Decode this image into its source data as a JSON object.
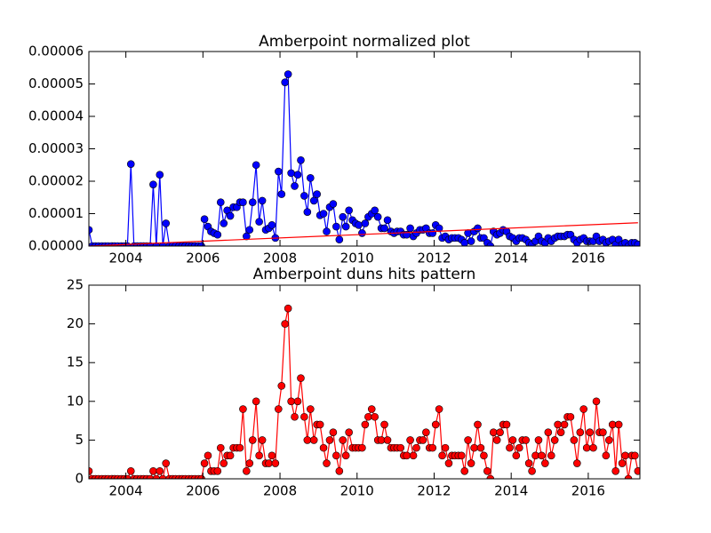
{
  "chart_data": [
    {
      "type": "line",
      "title": "Amberpoint normalized plot",
      "x": [
        2003.04,
        2003.13,
        2003.21,
        2003.29,
        2003.38,
        2003.46,
        2003.54,
        2003.63,
        2003.71,
        2003.79,
        2003.88,
        2003.96,
        2004.04,
        2004.13,
        2004.21,
        2004.29,
        2004.38,
        2004.46,
        2004.54,
        2004.63,
        2004.71,
        2004.79,
        2004.88,
        2004.96,
        2005.04,
        2005.13,
        2005.21,
        2005.29,
        2005.38,
        2005.46,
        2005.54,
        2005.63,
        2005.71,
        2005.79,
        2005.88,
        2005.96,
        2006.04,
        2006.13,
        2006.21,
        2006.29,
        2006.38,
        2006.46,
        2006.54,
        2006.63,
        2006.71,
        2006.79,
        2006.88,
        2006.96,
        2007.04,
        2007.13,
        2007.21,
        2007.29,
        2007.38,
        2007.46,
        2007.54,
        2007.63,
        2007.71,
        2007.79,
        2007.88,
        2007.96,
        2008.04,
        2008.13,
        2008.21,
        2008.29,
        2008.38,
        2008.46,
        2008.54,
        2008.63,
        2008.71,
        2008.79,
        2008.88,
        2008.96,
        2009.04,
        2009.13,
        2009.21,
        2009.29,
        2009.38,
        2009.46,
        2009.54,
        2009.63,
        2009.71,
        2009.79,
        2009.88,
        2009.96,
        2010.04,
        2010.13,
        2010.21,
        2010.29,
        2010.38,
        2010.46,
        2010.54,
        2010.63,
        2010.71,
        2010.79,
        2010.88,
        2010.96,
        2011.04,
        2011.13,
        2011.21,
        2011.29,
        2011.38,
        2011.46,
        2011.54,
        2011.63,
        2011.71,
        2011.79,
        2011.88,
        2011.96,
        2012.04,
        2012.13,
        2012.21,
        2012.29,
        2012.38,
        2012.46,
        2012.54,
        2012.63,
        2012.71,
        2012.79,
        2012.88,
        2012.96,
        2013.04,
        2013.13,
        2013.21,
        2013.29,
        2013.38,
        2013.46,
        2013.54,
        2013.63,
        2013.71,
        2013.79,
        2013.88,
        2013.96,
        2014.04,
        2014.13,
        2014.21,
        2014.29,
        2014.38,
        2014.46,
        2014.54,
        2014.63,
        2014.71,
        2014.79,
        2014.88,
        2014.96,
        2015.04,
        2015.13,
        2015.21,
        2015.29,
        2015.38,
        2015.46,
        2015.54,
        2015.63,
        2015.71,
        2015.79,
        2015.88,
        2015.96,
        2016.04,
        2016.13,
        2016.21,
        2016.29,
        2016.38,
        2016.46,
        2016.54,
        2016.63,
        2016.71,
        2016.79,
        2016.88,
        2016.96,
        2017.04,
        2017.13,
        2017.21,
        2017.29
      ],
      "series": [
        {
          "color": "#0000ff",
          "values": [
            5e-06,
            0,
            0,
            0,
            0,
            0,
            0,
            0,
            0,
            0,
            0,
            0,
            0,
            2.53e-05,
            0,
            0,
            0,
            0,
            0,
            0,
            1.9e-05,
            0,
            2.2e-05,
            0,
            7e-06,
            0,
            0,
            0,
            0,
            0,
            0,
            0,
            0,
            0,
            0,
            0,
            8.3e-06,
            6e-06,
            4.5e-06,
            4e-06,
            3.5e-06,
            1.35e-05,
            7e-06,
            1.1e-05,
            9.3e-06,
            1.2e-05,
            1.2e-05,
            1.35e-05,
            1.35e-05,
            3e-06,
            5e-06,
            1.35e-05,
            2.5e-05,
            7.5e-06,
            1.4e-05,
            5e-06,
            5.5e-06,
            6.5e-06,
            2.5e-06,
            2.3e-05,
            1.6e-05,
            5.05e-05,
            5.3e-05,
            2.25e-05,
            1.85e-05,
            2.2e-05,
            2.65e-05,
            1.55e-05,
            1.05e-05,
            2.1e-05,
            1.4e-05,
            1.6e-05,
            9.5e-06,
            1e-05,
            4.5e-06,
            1.2e-05,
            1.3e-05,
            6e-06,
            2e-06,
            9e-06,
            6e-06,
            1.1e-05,
            8e-06,
            7e-06,
            6.5e-06,
            4e-06,
            7e-06,
            9e-06,
            1e-05,
            1.1e-05,
            9e-06,
            5.5e-06,
            5.5e-06,
            8e-06,
            4.5e-06,
            4e-06,
            4.5e-06,
            4.5e-06,
            3.5e-06,
            3.5e-06,
            5.5e-06,
            3e-06,
            4e-06,
            5e-06,
            5e-06,
            5.5e-06,
            4e-06,
            4e-06,
            6.5e-06,
            5.5e-06,
            2.5e-06,
            3e-06,
            2e-06,
            2.5e-06,
            2.5e-06,
            2.5e-06,
            2e-06,
            1e-06,
            4e-06,
            1.5e-06,
            4.5e-06,
            5.5e-06,
            2.5e-06,
            2.5e-06,
            1e-06,
            0,
            4.5e-06,
            3.5e-06,
            4e-06,
            5e-06,
            4.5e-06,
            3e-06,
            2.5e-06,
            1.5e-06,
            2.5e-06,
            2.5e-06,
            2e-06,
            1e-06,
            5e-07,
            1.5e-06,
            3e-06,
            1.5e-06,
            1e-06,
            2.5e-06,
            1.5e-06,
            2.5e-06,
            3e-06,
            3e-06,
            3e-06,
            3.5e-06,
            3.5e-06,
            2e-06,
            1e-06,
            2e-06,
            2.5e-06,
            1.5e-06,
            1.5e-06,
            1.5e-06,
            3e-06,
            1.5e-06,
            2e-06,
            1e-06,
            1.5e-06,
            2e-06,
            5e-07,
            2e-06,
            5e-07,
            1e-06,
            0,
            1e-06,
            1e-06,
            5e-07
          ]
        }
      ],
      "trend_line": {
        "x": [
          2003.04,
          2017.29
        ],
        "values": [
          0,
          7.2e-06
        ],
        "color": "#ff0000"
      },
      "xlim": [
        2003.04,
        2017.34
      ],
      "xticks": [
        2004,
        2006,
        2008,
        2010,
        2012,
        2014,
        2016
      ],
      "ylim": [
        0,
        6e-05
      ],
      "yticks": [
        {
          "value": 0,
          "label": "0.00000"
        },
        {
          "value": 1e-05,
          "label": "0.00001"
        },
        {
          "value": 2e-05,
          "label": "0.00002"
        },
        {
          "value": 3e-05,
          "label": "0.00003"
        },
        {
          "value": 4e-05,
          "label": "0.00004"
        },
        {
          "value": 5e-05,
          "label": "0.00005"
        },
        {
          "value": 6e-05,
          "label": "0.00006"
        }
      ]
    },
    {
      "type": "line",
      "title": "Amberpoint duns hits pattern",
      "x": [
        2003.04,
        2003.13,
        2003.21,
        2003.29,
        2003.38,
        2003.46,
        2003.54,
        2003.63,
        2003.71,
        2003.79,
        2003.88,
        2003.96,
        2004.04,
        2004.13,
        2004.21,
        2004.29,
        2004.38,
        2004.46,
        2004.54,
        2004.63,
        2004.71,
        2004.79,
        2004.88,
        2004.96,
        2005.04,
        2005.13,
        2005.21,
        2005.29,
        2005.38,
        2005.46,
        2005.54,
        2005.63,
        2005.71,
        2005.79,
        2005.88,
        2005.96,
        2006.04,
        2006.13,
        2006.21,
        2006.29,
        2006.38,
        2006.46,
        2006.54,
        2006.63,
        2006.71,
        2006.79,
        2006.88,
        2006.96,
        2007.04,
        2007.13,
        2007.21,
        2007.29,
        2007.38,
        2007.46,
        2007.54,
        2007.63,
        2007.71,
        2007.79,
        2007.88,
        2007.96,
        2008.04,
        2008.13,
        2008.21,
        2008.29,
        2008.38,
        2008.46,
        2008.54,
        2008.63,
        2008.71,
        2008.79,
        2008.88,
        2008.96,
        2009.04,
        2009.13,
        2009.21,
        2009.29,
        2009.38,
        2009.46,
        2009.54,
        2009.63,
        2009.71,
        2009.79,
        2009.88,
        2009.96,
        2010.04,
        2010.13,
        2010.21,
        2010.29,
        2010.38,
        2010.46,
        2010.54,
        2010.63,
        2010.71,
        2010.79,
        2010.88,
        2010.96,
        2011.04,
        2011.13,
        2011.21,
        2011.29,
        2011.38,
        2011.46,
        2011.54,
        2011.63,
        2011.71,
        2011.79,
        2011.88,
        2011.96,
        2012.04,
        2012.13,
        2012.21,
        2012.29,
        2012.38,
        2012.46,
        2012.54,
        2012.63,
        2012.71,
        2012.79,
        2012.88,
        2012.96,
        2013.04,
        2013.13,
        2013.21,
        2013.29,
        2013.38,
        2013.46,
        2013.54,
        2013.63,
        2013.71,
        2013.79,
        2013.88,
        2013.96,
        2014.04,
        2014.13,
        2014.21,
        2014.29,
        2014.38,
        2014.46,
        2014.54,
        2014.63,
        2014.71,
        2014.79,
        2014.88,
        2014.96,
        2015.04,
        2015.13,
        2015.21,
        2015.29,
        2015.38,
        2015.46,
        2015.54,
        2015.63,
        2015.71,
        2015.79,
        2015.88,
        2015.96,
        2016.04,
        2016.13,
        2016.21,
        2016.29,
        2016.38,
        2016.46,
        2016.54,
        2016.63,
        2016.71,
        2016.79,
        2016.88,
        2016.96,
        2017.04,
        2017.13,
        2017.21,
        2017.29
      ],
      "series": [
        {
          "color": "#ff0000",
          "values": [
            1,
            0,
            0,
            0,
            0,
            0,
            0,
            0,
            0,
            0,
            0,
            0,
            0,
            1,
            0,
            0,
            0,
            0,
            0,
            0,
            1,
            0,
            1,
            0,
            2,
            0,
            0,
            0,
            0,
            0,
            0,
            0,
            0,
            0,
            0,
            0,
            2,
            3,
            1,
            1,
            1,
            4,
            2,
            3,
            3,
            4,
            4,
            4,
            9,
            1,
            2,
            5,
            10,
            3,
            5,
            2,
            2,
            3,
            2,
            9,
            12,
            20,
            22,
            10,
            8,
            10,
            13,
            8,
            5,
            9,
            5,
            7,
            7,
            4,
            2,
            5,
            6,
            3,
            1,
            5,
            3,
            6,
            4,
            4,
            4,
            4,
            7,
            8,
            9,
            8,
            5,
            5,
            7,
            5,
            4,
            4,
            4,
            4,
            3,
            3,
            5,
            3,
            4,
            5,
            5,
            6,
            4,
            4,
            7,
            9,
            3,
            4,
            2,
            3,
            3,
            3,
            3,
            1,
            5,
            2,
            4,
            7,
            4,
            3,
            1,
            0,
            6,
            5,
            6,
            7,
            7,
            4,
            5,
            3,
            4,
            5,
            5,
            2,
            1,
            3,
            5,
            3,
            2,
            6,
            3,
            5,
            7,
            6,
            7,
            8,
            8,
            5,
            2,
            6,
            9,
            4,
            6,
            4,
            10,
            6,
            6,
            3,
            5,
            7,
            1,
            7,
            2,
            3,
            0,
            3,
            3,
            1
          ]
        }
      ],
      "xlim": [
        2003.04,
        2017.34
      ],
      "xticks": [
        2004,
        2006,
        2008,
        2010,
        2012,
        2014,
        2016
      ],
      "ylim": [
        0,
        25
      ],
      "yticks": [
        0,
        5,
        10,
        15,
        20,
        25
      ]
    }
  ]
}
